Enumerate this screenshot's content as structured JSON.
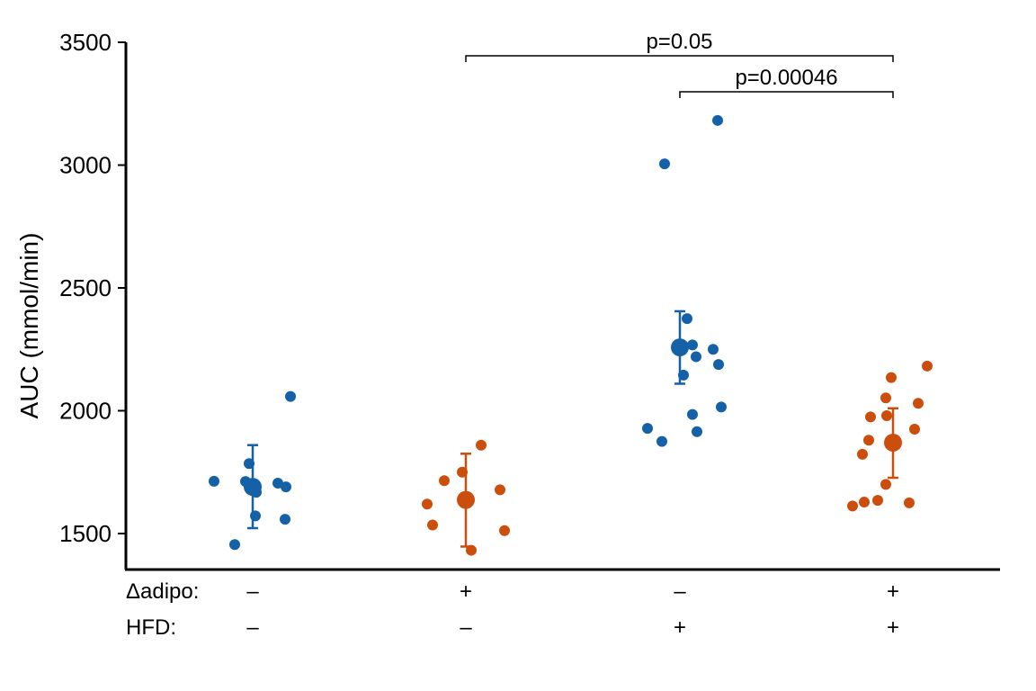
{
  "chart_data": {
    "type": "scatter",
    "ylabel": "AUC (mmol/min)",
    "ylim": [
      1350,
      3500
    ],
    "yticks": [
      1500,
      2000,
      2500,
      3000,
      3500
    ],
    "grid": false,
    "row_labels": [
      "Δadipo:",
      "HFD:"
    ],
    "groups": [
      {
        "adipo": "–",
        "hfd": "–",
        "color": "#1561a8",
        "mean": 1690,
        "err_low": 1522,
        "err_high": 1860,
        "points": [
          1713,
          1785,
          1712,
          1705,
          1668,
          1700,
          1690,
          1572,
          1558,
          1455,
          2058
        ]
      },
      {
        "adipo": "+",
        "hfd": "–",
        "color": "#cc4e0c",
        "mean": 1637,
        "err_low": 1447,
        "err_high": 1825,
        "points": [
          1620,
          1535,
          1715,
          1750,
          1860,
          1678,
          1512,
          1432
        ]
      },
      {
        "adipo": "–",
        "hfd": "+",
        "color": "#1561a8",
        "mean": 2258,
        "err_low": 2110,
        "err_high": 2405,
        "points": [
          1928,
          1875,
          3005,
          2375,
          2268,
          2145,
          2220,
          2250,
          2188,
          1985,
          1915,
          2015,
          3182
        ]
      },
      {
        "adipo": "+",
        "hfd": "+",
        "color": "#cc4e0c",
        "mean": 1870,
        "err_low": 1727,
        "err_high": 2010,
        "points": [
          1612,
          1628,
          1823,
          1880,
          1975,
          1980,
          2052,
          1700,
          1635,
          2135,
          1925,
          2030,
          2182,
          1625
        ]
      }
    ],
    "annotations": [
      {
        "text": "p=0.05",
        "from_group": 1,
        "to_group": 3,
        "y": 3450
      },
      {
        "text": "p=0.00046",
        "from_group": 2,
        "to_group": 3,
        "y": 3300
      }
    ]
  }
}
